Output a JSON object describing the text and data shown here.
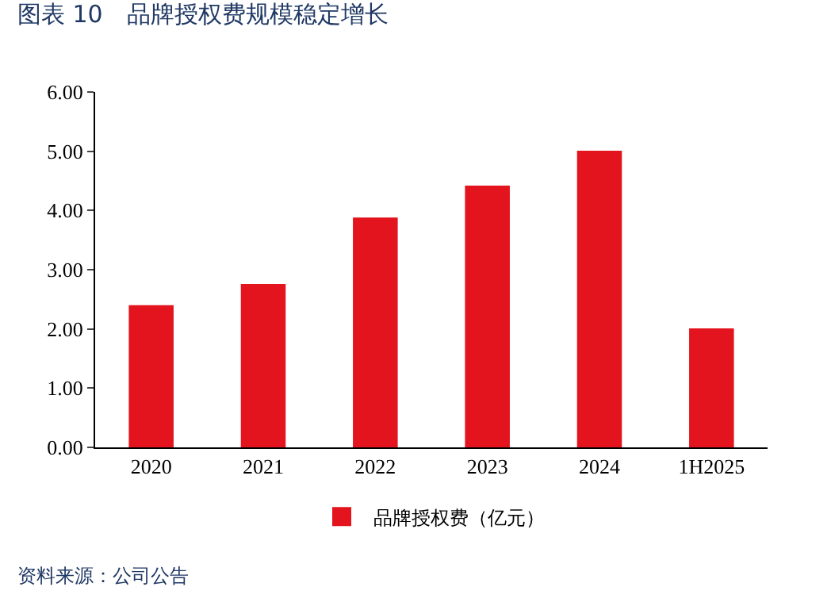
{
  "chart_data": {
    "type": "bar",
    "title": "图表 10　品牌授权费规模稳定增长",
    "categories": [
      "2020",
      "2021",
      "2022",
      "2023",
      "2024",
      "1H2025"
    ],
    "series": [
      {
        "name": "品牌授权费（亿元）",
        "color": "#e3141e",
        "values": [
          2.4,
          2.76,
          3.88,
          4.42,
          5.01,
          2.01
        ]
      }
    ],
    "ylim": [
      0,
      6
    ],
    "yticks": [
      {
        "value": 0,
        "label": "0.00"
      },
      {
        "value": 1,
        "label": "1.00"
      },
      {
        "value": 2,
        "label": "2.00"
      },
      {
        "value": 3,
        "label": "3.00"
      },
      {
        "value": 4,
        "label": "4.00"
      },
      {
        "value": 5,
        "label": "5.00"
      },
      {
        "value": 6,
        "label": "6.00"
      }
    ],
    "grid": false,
    "legend": "bottom",
    "annotations": [
      "资料来源：公司公告"
    ]
  }
}
